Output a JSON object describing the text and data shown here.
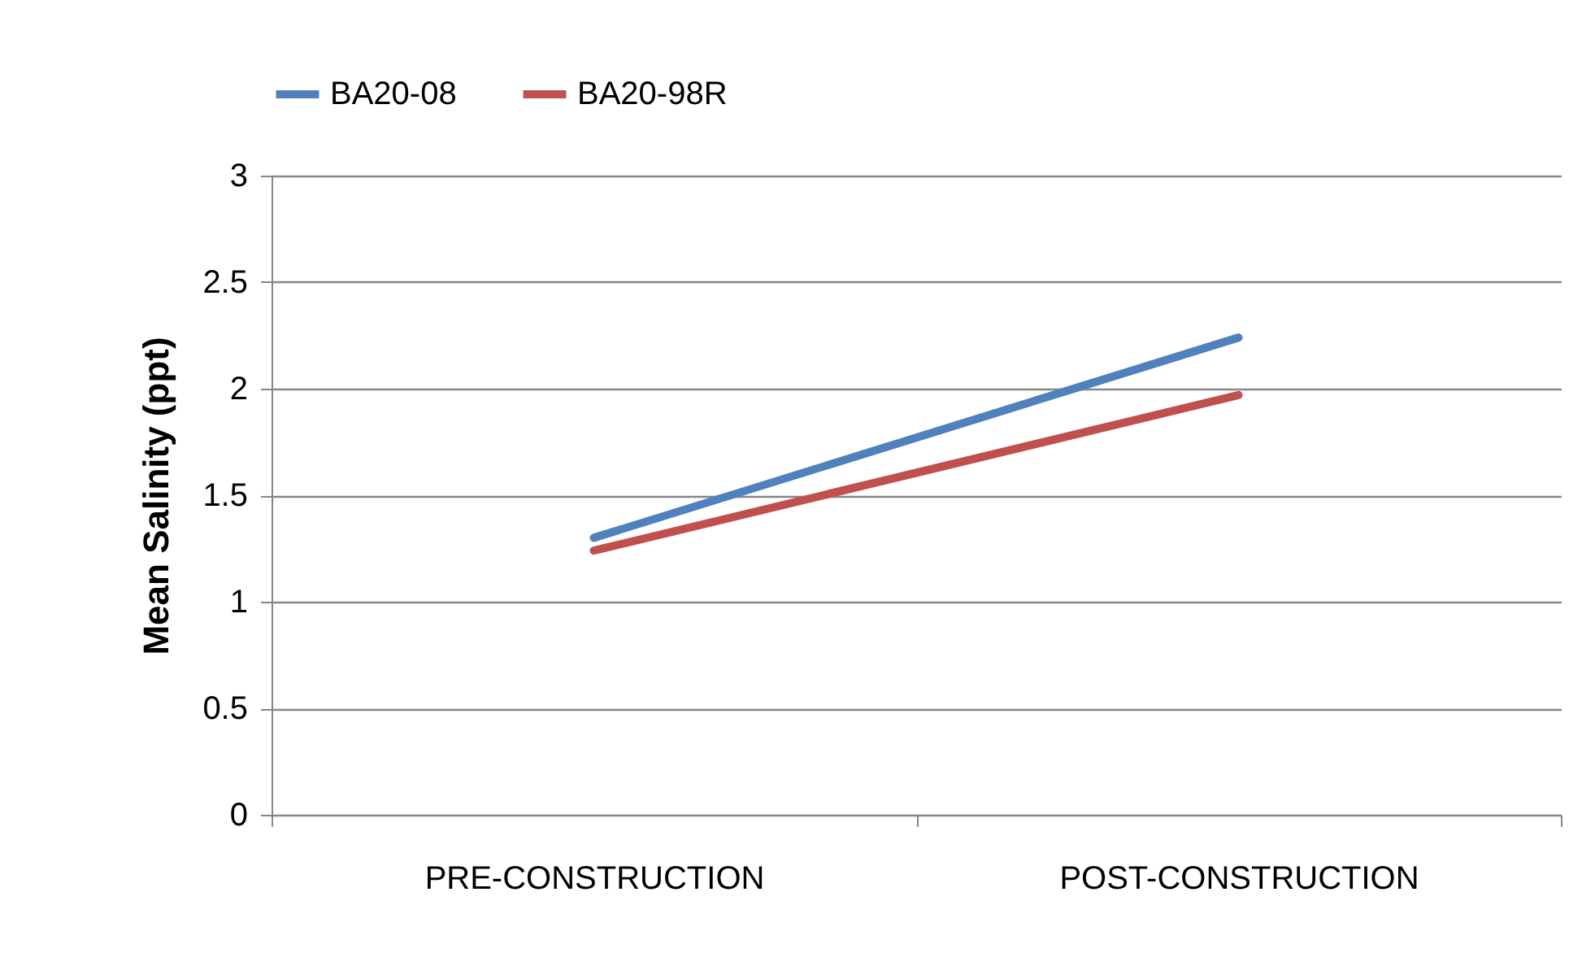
{
  "chart_data": {
    "type": "line",
    "ylabel": "Mean Salinity (ppt)",
    "categories": [
      "PRE-CONSTRUCTION",
      "POST-CONSTRUCTION"
    ],
    "series": [
      {
        "name": "BA20-08",
        "color": "#4f81bd",
        "values": [
          1.3,
          2.24
        ]
      },
      {
        "name": "BA20-98R",
        "color": "#c0504d",
        "values": [
          1.24,
          1.97
        ]
      }
    ],
    "ylim": [
      0,
      3
    ],
    "yticks": [
      0,
      0.5,
      1,
      1.5,
      2,
      2.5,
      3
    ],
    "grid": "y",
    "legend": "top",
    "marker": "none",
    "line_style": "solid"
  }
}
